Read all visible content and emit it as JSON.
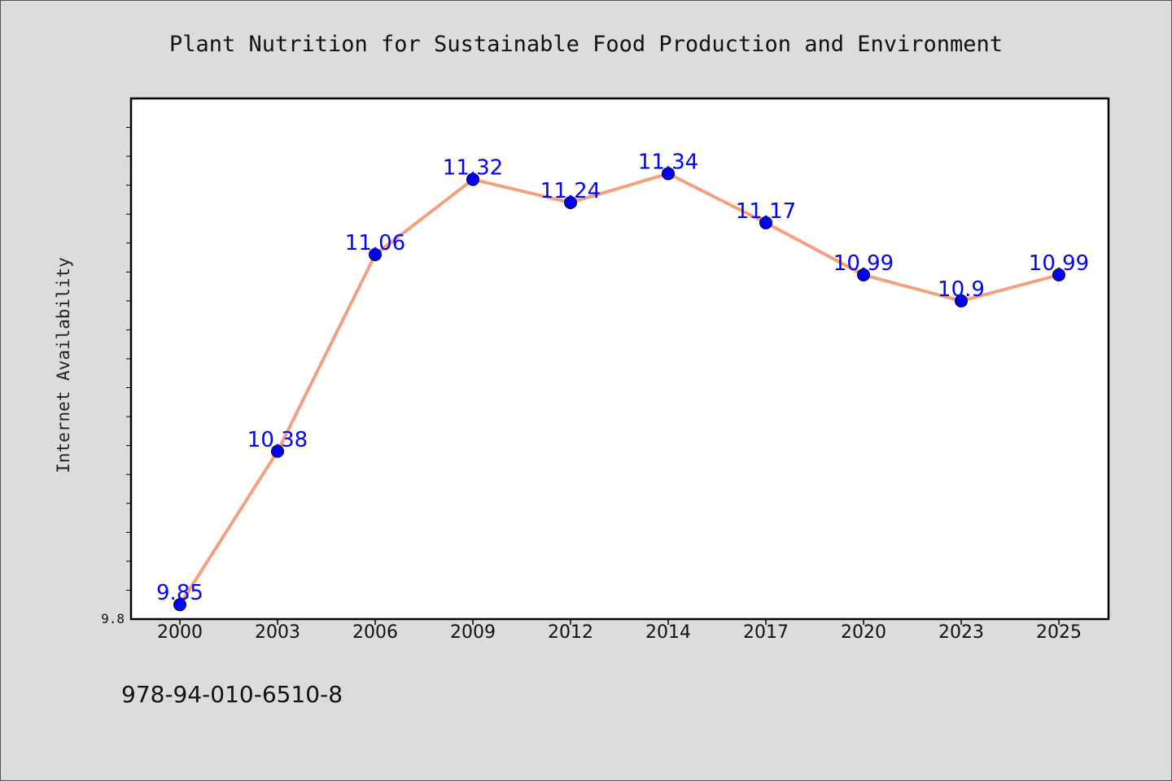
{
  "chart_data": {
    "type": "line",
    "title": "Plant Nutrition for Sustainable Food Production and Environment",
    "xlabel": "",
    "ylabel": "Internet Availability",
    "categories": [
      "2000",
      "2003",
      "2006",
      "2009",
      "2012",
      "2014",
      "2017",
      "2020",
      "2023",
      "2025"
    ],
    "series": [
      {
        "values": [
          9.85,
          10.38,
          11.06,
          11.32,
          11.24,
          11.34,
          11.17,
          10.99,
          10.9,
          10.99
        ],
        "data_labels": [
          "9.85",
          "10.38",
          "11.06",
          "11.32",
          "11.24",
          "11.34",
          "11.17",
          "10.99",
          "10.9",
          "10.99"
        ],
        "line_color": "#f4a07e",
        "marker_color": "#0000ff"
      }
    ],
    "ylim": [
      9.8,
      11.6
    ],
    "ytick_labels": [
      "9.8"
    ],
    "ytick_values": [
      9.8
    ],
    "minor_tick_step": 0.1,
    "grid": false,
    "legend": "none",
    "footer": "978-94-010-6510-8"
  }
}
